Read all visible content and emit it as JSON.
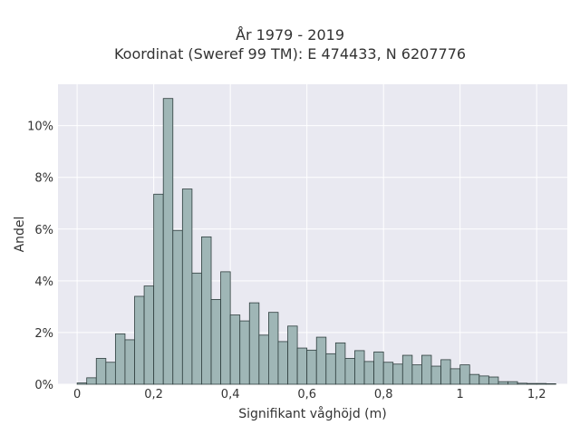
{
  "chart_data": {
    "type": "bar",
    "title": "År 1979 - 2019",
    "subtitle": "Koordinat (Sweref 99 TM): E 474433, N 6207776",
    "xlabel": "Signifikant våghöjd (m)",
    "ylabel": "Andel",
    "xlim": [
      -0.05,
      1.28
    ],
    "ylim": [
      0,
      11.6
    ],
    "x_ticks": [
      0,
      0.2,
      0.4,
      0.6,
      0.8,
      1.0,
      1.2
    ],
    "x_tick_labels": [
      "0",
      "0,2",
      "0,4",
      "0,6",
      "0,8",
      "1",
      "1,2"
    ],
    "y_ticks": [
      0,
      2,
      4,
      6,
      8,
      10
    ],
    "y_tick_labels": [
      "0%",
      "2%",
      "4%",
      "6%",
      "8%",
      "10%"
    ],
    "y_unit": "%",
    "grid": true,
    "bin_width": 0.025,
    "bin_starts": [
      0.0,
      0.025,
      0.05,
      0.075,
      0.1,
      0.125,
      0.15,
      0.175,
      0.2,
      0.225,
      0.25,
      0.275,
      0.3,
      0.325,
      0.35,
      0.375,
      0.4,
      0.425,
      0.45,
      0.475,
      0.5,
      0.525,
      0.55,
      0.575,
      0.6,
      0.625,
      0.65,
      0.675,
      0.7,
      0.725,
      0.75,
      0.775,
      0.8,
      0.825,
      0.85,
      0.875,
      0.9,
      0.925,
      0.95,
      0.975,
      1.0,
      1.025,
      1.05,
      1.075,
      1.1,
      1.125,
      1.15,
      1.175,
      1.2,
      1.225
    ],
    "values": [
      0.05,
      0.25,
      1.0,
      0.85,
      1.95,
      1.72,
      3.4,
      3.8,
      7.35,
      11.05,
      5.95,
      7.55,
      4.3,
      5.7,
      3.28,
      4.35,
      2.68,
      2.45,
      3.15,
      1.9,
      2.78,
      1.65,
      2.25,
      1.4,
      1.32,
      1.82,
      1.18,
      1.6,
      1.0,
      1.3,
      0.88,
      1.25,
      0.85,
      0.78,
      1.12,
      0.75,
      1.12,
      0.7,
      0.95,
      0.6,
      0.75,
      0.38,
      0.32,
      0.28,
      0.1,
      0.1,
      0.04,
      0.03,
      0.03,
      0.02
    ],
    "colors": {
      "bar_fill": "#9fb6b6",
      "bar_stroke": "#2f3e3e",
      "plot_background": "#e9e9f1",
      "grid": "#ffffff"
    }
  }
}
